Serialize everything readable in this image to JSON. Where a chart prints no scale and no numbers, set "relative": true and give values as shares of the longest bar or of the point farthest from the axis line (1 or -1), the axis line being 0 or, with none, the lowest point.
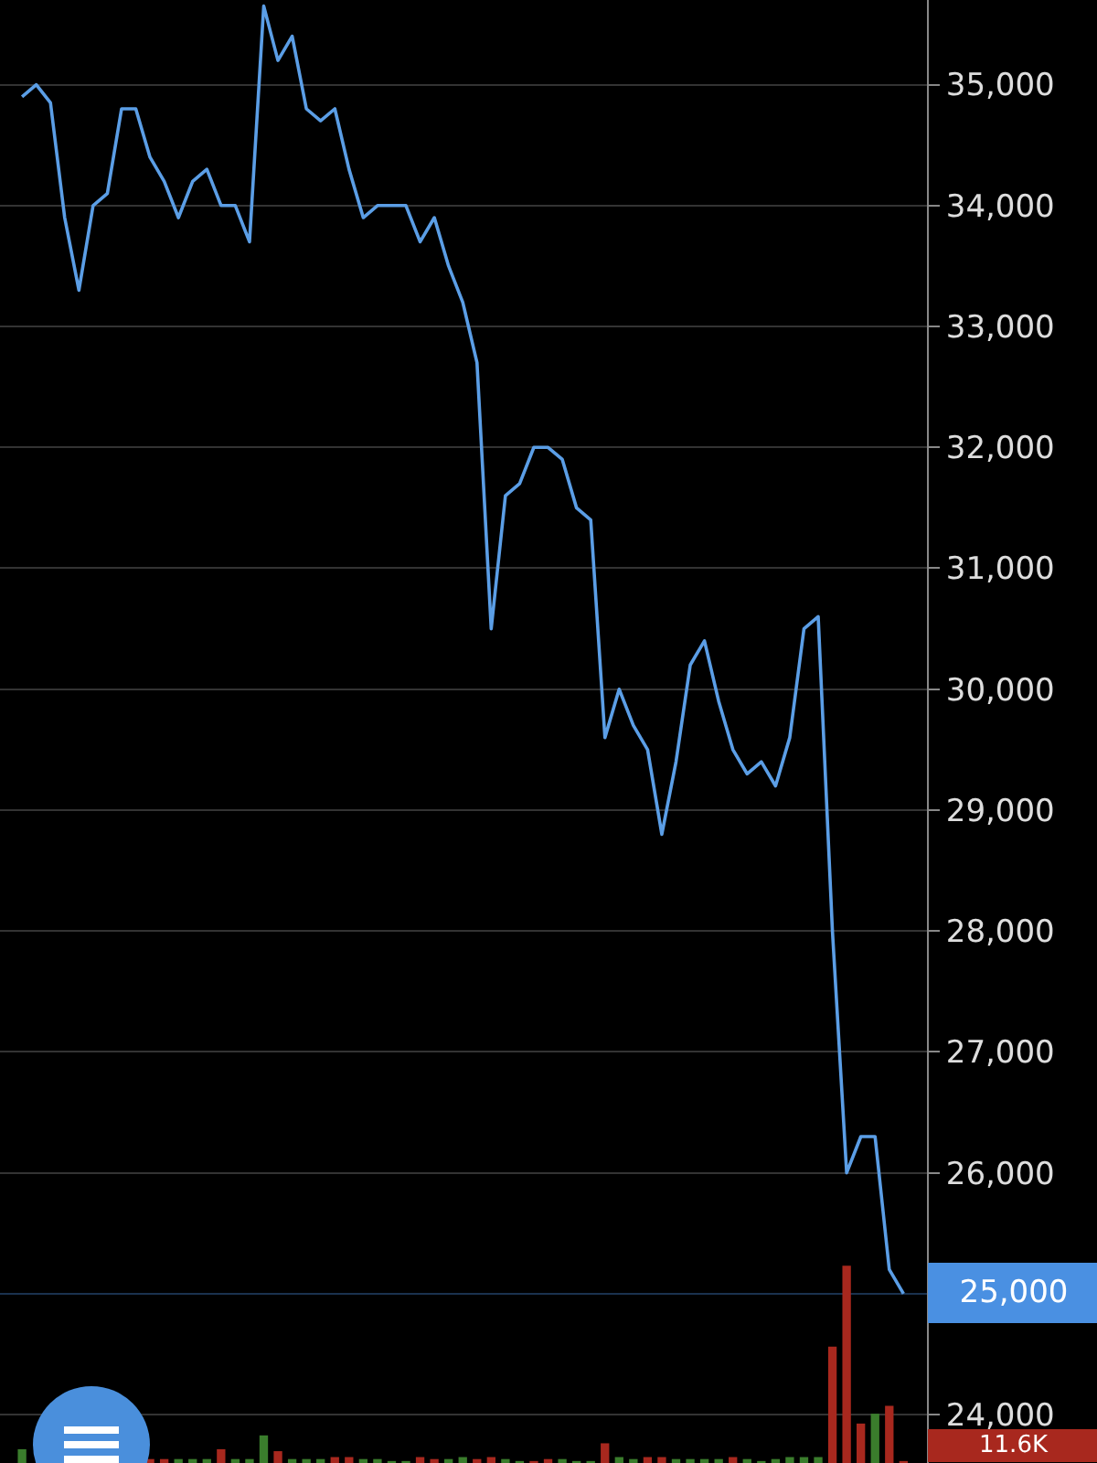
{
  "chart_data": [
    {
      "type": "line",
      "categories": [
        null,
        null,
        null,
        null,
        null,
        null,
        null,
        null,
        null,
        null,
        null,
        null,
        null,
        null,
        null,
        null,
        null,
        null,
        null,
        null,
        null,
        null,
        null,
        null,
        null,
        null,
        null,
        null,
        null,
        null,
        null,
        null,
        null,
        null,
        null,
        null,
        null,
        null,
        null,
        null,
        null,
        null,
        null,
        null,
        null,
        null,
        null,
        null,
        null,
        null,
        null,
        null,
        null,
        null,
        null,
        null,
        null,
        null,
        null,
        null,
        null,
        null,
        null
      ],
      "series": [
        {
          "color": "#5b9ee6",
          "values": [
            34900,
            35000,
            34850,
            33900,
            33300,
            34000,
            34100,
            34800,
            34800,
            34400,
            34200,
            33900,
            34200,
            34300,
            34000,
            34000,
            33700,
            35650,
            35200,
            35400,
            34800,
            34700,
            34800,
            34300,
            33900,
            34000,
            34000,
            34000,
            33700,
            33900,
            33500,
            33200,
            32700,
            30500,
            31600,
            31700,
            32000,
            32000,
            31900,
            31500,
            31400,
            29600,
            30000,
            29700,
            29500,
            28800,
            29400,
            30200,
            30400,
            29900,
            29500,
            29300,
            29400,
            29200,
            29600,
            30500,
            30600,
            28000,
            26000,
            26300,
            26300,
            25200,
            25000
          ]
        }
      ],
      "ylim": [
        23600,
        35700
      ],
      "yticks": [
        {
          "value": 24000,
          "label": "24,000"
        },
        {
          "value": 26000,
          "label": "26,000"
        },
        {
          "value": 27000,
          "label": "27,000"
        },
        {
          "value": 28000,
          "label": "28,000"
        },
        {
          "value": 29000,
          "label": "29,000"
        },
        {
          "value": 30000,
          "label": "30,000"
        },
        {
          "value": 31000,
          "label": "31,000"
        },
        {
          "value": 32000,
          "label": "32,000"
        },
        {
          "value": 33000,
          "label": "33,000"
        },
        {
          "value": 34000,
          "label": "34,000"
        },
        {
          "value": 35000,
          "label": "35,000"
        }
      ],
      "ref_lines": [
        {
          "axis": "y",
          "value": 25000,
          "label": "25,000",
          "color": "#4a90e2"
        }
      ],
      "grid": "y",
      "marker": "none",
      "line_style": "solid",
      "tick_labels": "y"
    },
    {
      "type": "bar",
      "relative": true,
      "categories": [
        null,
        null,
        null,
        null,
        null,
        null,
        null,
        null,
        null,
        null,
        null,
        null,
        null,
        null,
        null,
        null,
        null,
        null,
        null,
        null,
        null,
        null,
        null,
        null,
        null,
        null,
        null,
        null,
        null,
        null,
        null,
        null,
        null,
        null,
        null,
        null,
        null,
        null,
        null,
        null,
        null,
        null,
        null,
        null,
        null,
        null,
        null,
        null,
        null,
        null,
        null,
        null,
        null,
        null,
        null,
        null,
        null,
        null,
        null,
        null,
        null,
        null,
        null
      ],
      "values": [
        0.07,
        null,
        null,
        null,
        null,
        null,
        null,
        null,
        null,
        0.02,
        0.02,
        0.02,
        0.02,
        0.02,
        0.07,
        0.02,
        0.02,
        0.14,
        0.06,
        0.02,
        0.02,
        0.02,
        0.03,
        0.03,
        0.02,
        0.02,
        0.01,
        0.01,
        0.03,
        0.02,
        0.02,
        0.03,
        0.02,
        0.03,
        0.02,
        0.01,
        0.01,
        0.02,
        0.02,
        0.01,
        0.01,
        0.1,
        0.03,
        0.02,
        0.03,
        0.03,
        0.02,
        0.02,
        0.02,
        0.02,
        0.03,
        0.02,
        0.01,
        0.02,
        0.03,
        0.03,
        0.03,
        0.59,
        1,
        0.2,
        0.25,
        0.29,
        0.01
      ],
      "colors": [
        "#3a7d2c",
        "#a8281e",
        "#a8281e",
        "#a8281e",
        "#a8281e",
        "#a8281e",
        "#a8281e",
        "#a8281e",
        "#a8281e",
        "#a8281e",
        "#a8281e",
        "#3a7d2c",
        "#3a7d2c",
        "#3a7d2c",
        "#a8281e",
        "#3a7d2c",
        "#3a7d2c",
        "#3a7d2c",
        "#a8281e",
        "#3a7d2c",
        "#3a7d2c",
        "#3a7d2c",
        "#a8281e",
        "#a8281e",
        "#3a7d2c",
        "#3a7d2c",
        "#3a7d2c",
        "#3a7d2c",
        "#a8281e",
        "#a8281e",
        "#3a7d2c",
        "#3a7d2c",
        "#a8281e",
        "#a8281e",
        "#3a7d2c",
        "#3a7d2c",
        "#a8281e",
        "#a8281e",
        "#3a7d2c",
        "#3a7d2c",
        "#3a7d2c",
        "#a8281e",
        "#3a7d2c",
        "#3a7d2c",
        "#a8281e",
        "#a8281e",
        "#3a7d2c",
        "#3a7d2c",
        "#3a7d2c",
        "#3a7d2c",
        "#a8281e",
        "#3a7d2c",
        "#3a7d2c",
        "#3a7d2c",
        "#3a7d2c",
        "#3a7d2c",
        "#3a7d2c",
        "#a8281e",
        "#a8281e",
        "#a8281e",
        "#3a7d2c",
        "#a8281e",
        "#a8281e"
      ],
      "annotations": [
        "11.6K"
      ]
    }
  ]
}
